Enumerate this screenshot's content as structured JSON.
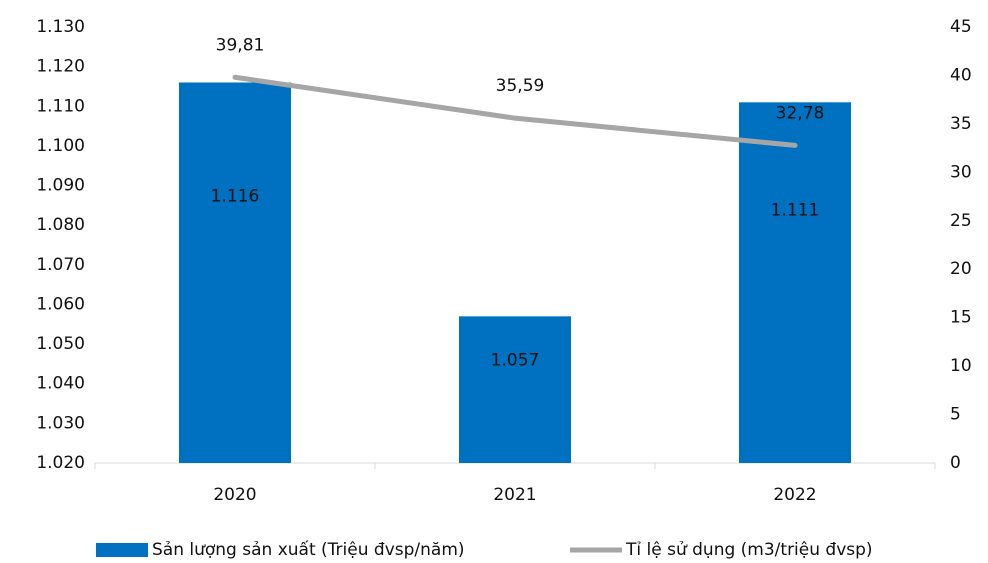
{
  "chart_data": {
    "type": "bar-line",
    "categories": [
      "2020",
      "2021",
      "2022"
    ],
    "series": [
      {
        "name": "Sản lượng sản xuất (Triệu đvsp/năm)",
        "type": "bar",
        "color": "#0070c0",
        "values": [
          1116,
          1057,
          1111
        ],
        "value_labels": [
          "1.116",
          "1.057",
          "1.111"
        ]
      },
      {
        "name": "Tỉ lệ sử dụng (m3/triệu đvsp)",
        "type": "line",
        "axis": "y2",
        "color": "#a6a6a6",
        "values": [
          39.81,
          35.59,
          32.78
        ],
        "value_labels": [
          "39,81",
          "35,59",
          "32,78"
        ]
      }
    ],
    "ylim": [
      1020,
      1130
    ],
    "yticks": [
      {
        "value": 1020,
        "label": "1.020"
      },
      {
        "value": 1030,
        "label": "1.030"
      },
      {
        "value": 1040,
        "label": "1.040"
      },
      {
        "value": 1050,
        "label": "1.050"
      },
      {
        "value": 1060,
        "label": "1.060"
      },
      {
        "value": 1070,
        "label": "1.070"
      },
      {
        "value": 1080,
        "label": "1.080"
      },
      {
        "value": 1090,
        "label": "1.090"
      },
      {
        "value": 1100,
        "label": "1.100"
      },
      {
        "value": 1110,
        "label": "1.110"
      },
      {
        "value": 1120,
        "label": "1.120"
      },
      {
        "value": 1130,
        "label": "1.130"
      }
    ],
    "y2lim": [
      0,
      45
    ],
    "y2ticks": [
      0,
      5,
      10,
      15,
      20,
      25,
      30,
      35,
      40,
      45
    ],
    "grid": false,
    "legend": "bottom"
  }
}
